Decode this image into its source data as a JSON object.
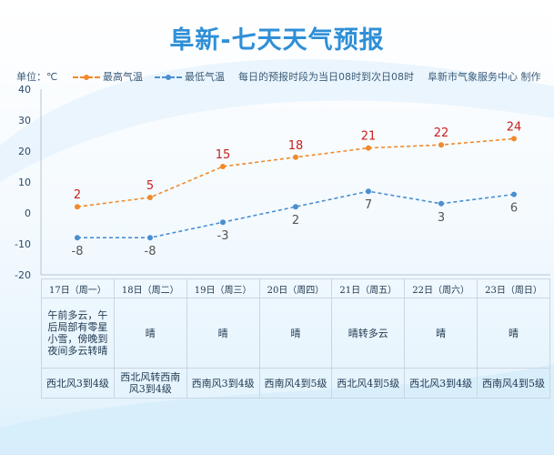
{
  "title": "阜新-七天天气预报",
  "legend": {
    "unit": "单位：℃",
    "high_label": "最高气温",
    "low_label": "最低气温",
    "note": "每日的预报时段为当日08时到次日08时",
    "credit": "阜新市气象服务中心 制作"
  },
  "colors": {
    "high": "#f08a2c",
    "low": "#4a8fd0",
    "high_text": "#c8201e",
    "low_text": "#555555",
    "title": "#2f8fd6"
  },
  "chart_data": {
    "type": "line",
    "title": "阜新-七天天气预报",
    "ylabel": "单位：℃",
    "ylim": [
      -20,
      40
    ],
    "yticks": [
      "-20",
      "-10",
      "0",
      "10",
      "20",
      "30",
      "40"
    ],
    "categories": [
      "17日（周一）",
      "18日（周二）",
      "19日（周三）",
      "20日（周四）",
      "21日（周五）",
      "22日（周六）",
      "23日（周日）"
    ],
    "series": [
      {
        "name": "最高气温",
        "values": [
          2,
          5,
          15,
          18,
          21,
          22,
          24
        ]
      },
      {
        "name": "最低气温",
        "values": [
          -8,
          -8,
          -3,
          2,
          7,
          3,
          6
        ]
      }
    ]
  },
  "days": [
    {
      "date": "17日（周一）",
      "weather": "午前多云，午后局部有零星小雪，傍晚到夜间多云转晴",
      "wind": "西北风3到4级"
    },
    {
      "date": "18日（周二）",
      "weather": "晴",
      "wind": "西北风转西南风3到4级"
    },
    {
      "date": "19日（周三）",
      "weather": "晴",
      "wind": "西南风3到4级"
    },
    {
      "date": "20日（周四）",
      "weather": "晴",
      "wind": "西南风4到5级"
    },
    {
      "date": "21日（周五）",
      "weather": "晴转多云",
      "wind": "西北风4到5级"
    },
    {
      "date": "22日（周六）",
      "weather": "晴",
      "wind": "西北风3到4级"
    },
    {
      "date": "23日（周日）",
      "weather": "晴",
      "wind": "西南风4到5级"
    }
  ]
}
